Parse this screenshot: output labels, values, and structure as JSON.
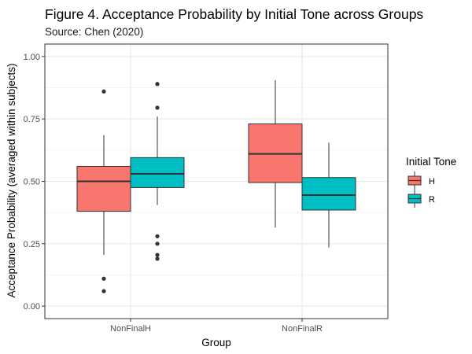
{
  "chart_data": {
    "type": "boxplot",
    "title": "Figure 4. Acceptance Probability by Initial Tone across Groups",
    "subtitle": "Source: Chen (2020)",
    "xlabel": "Group",
    "ylabel": "Acceptance Probability (averaged within subjects)",
    "categories": [
      "NonFinalH",
      "NonFinalR"
    ],
    "ylim": [
      -0.05,
      1.05
    ],
    "yticks": [
      0.0,
      0.25,
      0.5,
      0.75,
      1.0
    ],
    "ytick_labels": [
      "0.00",
      "0.25",
      "0.50",
      "0.75",
      "1.00"
    ],
    "grid": true,
    "legend": {
      "title": "Initial Tone",
      "position": "right"
    },
    "series": [
      {
        "name": "H",
        "color": "#F8766D",
        "boxes": [
          {
            "category": "NonFinalH",
            "whisker_low": 0.205,
            "q1": 0.38,
            "median": 0.5,
            "q3": 0.56,
            "whisker_high": 0.685,
            "outliers": [
              0.86,
              0.11,
              0.06
            ]
          },
          {
            "category": "NonFinalR",
            "whisker_low": 0.315,
            "q1": 0.495,
            "median": 0.61,
            "q3": 0.73,
            "whisker_high": 0.905,
            "outliers": []
          }
        ]
      },
      {
        "name": "R",
        "color": "#00BFC4",
        "boxes": [
          {
            "category": "NonFinalH",
            "whisker_low": 0.405,
            "q1": 0.475,
            "median": 0.53,
            "q3": 0.595,
            "whisker_high": 0.76,
            "outliers": [
              0.89,
              0.795,
              0.28,
              0.25,
              0.205,
              0.19
            ]
          },
          {
            "category": "NonFinalR",
            "whisker_low": 0.235,
            "q1": 0.385,
            "median": 0.445,
            "q3": 0.515,
            "whisker_high": 0.655,
            "outliers": []
          }
        ]
      }
    ]
  }
}
